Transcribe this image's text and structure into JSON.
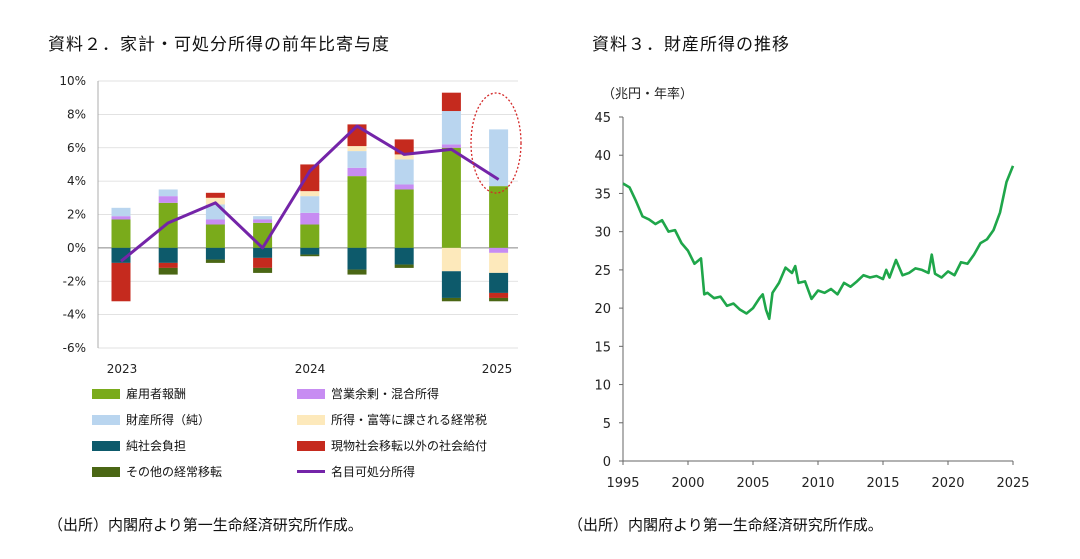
{
  "left": {
    "title": "資料２．家計・可処分所得の前年比寄与度",
    "source": "（出所）内閣府より第一生命経済研究所作成。"
  },
  "right": {
    "title": "資料３．財産所得の推移",
    "source": "（出所）内閣府より第一生命経済研究所作成。"
  },
  "colors": {
    "compensation": "#7aab1b",
    "operating_surplus": "#c78cf2",
    "property_income": "#b9d5ef",
    "income_tax": "#fde9bb",
    "social_contrib": "#0d5a6b",
    "benefits": "#c52a1e",
    "other_transfers": "#4a6614",
    "disposable_income": "#7424a8",
    "property_line": "#1fa64a",
    "highlight": "#d42a2a"
  },
  "chart_data": [
    {
      "type": "bar",
      "stacked": true,
      "x_labels": [
        "2023",
        "",
        "",
        "",
        "",
        "2024",
        "",
        "",
        "",
        "",
        "2025"
      ],
      "x_tick_labels": [
        "2023",
        "2024",
        "2025"
      ],
      "ylim": [
        -6,
        10
      ],
      "yticks": [
        "10%",
        "8%",
        "6%",
        "4%",
        "2%",
        "0%",
        "-2%",
        "-4%",
        "-6%"
      ],
      "series": [
        {
          "name": "雇用者報酬",
          "key": "compensation",
          "values": [
            1.7,
            2.7,
            1.4,
            1.5,
            1.4,
            4.3,
            3.5,
            6.0,
            3.7
          ]
        },
        {
          "name": "営業余剰・混合所得",
          "key": "operating_surplus",
          "values": [
            0.2,
            0.4,
            0.3,
            0.2,
            0.7,
            0.5,
            0.3,
            0.2,
            -0.3
          ]
        },
        {
          "name": "財産所得（純）",
          "key": "property_income",
          "values": [
            0.5,
            0.4,
            0.9,
            0.2,
            1.0,
            1.0,
            1.5,
            2.0,
            3.4
          ]
        },
        {
          "name": "所得・富等に課される経常税",
          "key": "income_tax",
          "values": [
            0,
            0,
            0.4,
            0,
            0.3,
            0.3,
            0.3,
            -1.4,
            -1.2
          ]
        },
        {
          "name": "純社会負担",
          "key": "social_contrib",
          "values": [
            -0.9,
            -0.9,
            -0.7,
            -0.6,
            -0.4,
            -1.3,
            -1.0,
            -1.6,
            -1.2
          ]
        },
        {
          "name": "現物社会移転以外の社会給付",
          "key": "benefits",
          "values": [
            -2.3,
            -0.3,
            0.3,
            -0.6,
            1.6,
            1.3,
            0.9,
            1.1,
            -0.3
          ]
        },
        {
          "name": "その他の経常移転",
          "key": "other_transfers",
          "values": [
            0,
            -0.4,
            -0.2,
            -0.3,
            -0.1,
            -0.3,
            -0.2,
            -0.2,
            -0.2
          ]
        }
      ],
      "line": {
        "name": "名目可処分所得",
        "key": "disposable_income",
        "values": [
          -0.8,
          1.5,
          2.7,
          0.0,
          4.6,
          7.3,
          5.6,
          5.9,
          4.1
        ]
      },
      "legend": [
        {
          "name": "雇用者報酬",
          "key": "compensation",
          "kind": "bar"
        },
        {
          "name": "営業余剰・混合所得",
          "key": "operating_surplus",
          "kind": "bar"
        },
        {
          "name": "財産所得（純）",
          "key": "property_income",
          "kind": "bar"
        },
        {
          "name": "所得・富等に課される経常税",
          "key": "income_tax",
          "kind": "bar"
        },
        {
          "name": "純社会負担",
          "key": "social_contrib",
          "kind": "bar"
        },
        {
          "name": "現物社会移転以外の社会給付",
          "key": "benefits",
          "kind": "bar"
        },
        {
          "name": "その他の経常移転",
          "key": "other_transfers",
          "kind": "bar"
        },
        {
          "name": "名目可処分所得",
          "key": "disposable_income",
          "kind": "line"
        }
      ],
      "legend_position": "bottom",
      "annotation": "dotted red ellipse highlighting latest bar",
      "grid": true
    },
    {
      "type": "line",
      "ylabel": "（兆円・年率）",
      "ylim": [
        0,
        45
      ],
      "yticks": [
        0,
        5,
        10,
        15,
        20,
        25,
        30,
        35,
        40,
        45
      ],
      "xlim": [
        1995,
        2025
      ],
      "xticks": [
        1995,
        2000,
        2005,
        2010,
        2015,
        2020,
        2025
      ],
      "grid": false,
      "series": [
        {
          "x": [
            1995.0,
            1995.5,
            1996.0,
            1996.5,
            1997.0,
            1997.5,
            1998.0,
            1998.5,
            1999.0,
            1999.5,
            2000.0,
            2000.5,
            2001.0,
            2001.25,
            2001.5,
            2002.0,
            2002.5,
            2003.0,
            2003.5,
            2004.0,
            2004.5,
            2005.0,
            2005.5,
            2005.75,
            2006.0,
            2006.25,
            2006.5,
            2007.0,
            2007.5,
            2008.0,
            2008.25,
            2008.5,
            2009.0,
            2009.5,
            2010.0,
            2010.5,
            2011.0,
            2011.5,
            2012.0,
            2012.5,
            2013.0,
            2013.5,
            2014.0,
            2014.5,
            2015.0,
            2015.25,
            2015.5,
            2016.0,
            2016.5,
            2017.0,
            2017.5,
            2018.0,
            2018.5,
            2018.75,
            2019.0,
            2019.5,
            2020.0,
            2020.5,
            2021.0,
            2021.5,
            2022.0,
            2022.5,
            2023.0,
            2023.5,
            2024.0,
            2024.5,
            2025.0
          ],
          "y": [
            36.3,
            35.8,
            34.0,
            32.0,
            31.6,
            31.0,
            31.5,
            30.0,
            30.2,
            28.5,
            27.5,
            25.8,
            26.5,
            21.8,
            22.0,
            21.3,
            21.5,
            20.3,
            20.6,
            19.8,
            19.3,
            20.0,
            21.3,
            21.8,
            19.8,
            18.6,
            22.0,
            23.3,
            25.3,
            24.6,
            25.5,
            23.3,
            23.5,
            21.2,
            22.3,
            22.0,
            22.5,
            21.8,
            23.3,
            22.8,
            23.5,
            24.3,
            24.0,
            24.2,
            23.8,
            25.0,
            24.0,
            26.3,
            24.3,
            24.6,
            25.2,
            25.0,
            24.6,
            27.0,
            24.5,
            24.0,
            24.8,
            24.3,
            26.0,
            25.8,
            27.0,
            28.5,
            29.0,
            30.2,
            32.5,
            36.5,
            38.6
          ]
        }
      ]
    }
  ]
}
